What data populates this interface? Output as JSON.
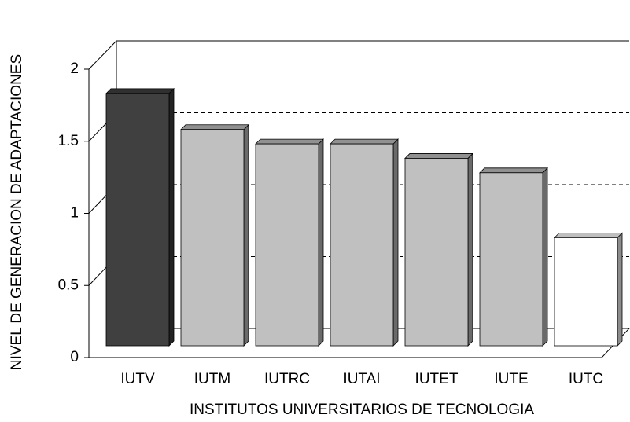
{
  "chart_data": {
    "type": "bar3d",
    "categories": [
      "IUTV",
      "IUTM",
      "IUTRC",
      "IUTAI",
      "IUTET",
      "IUTE",
      "IUTC"
    ],
    "values": [
      1.75,
      1.5,
      1.4,
      1.4,
      1.3,
      1.2,
      0.75
    ],
    "colors": [
      "#404040",
      "#c0c0c0",
      "#c0c0c0",
      "#c0c0c0",
      "#c0c0c0",
      "#c0c0c0",
      "#ffffff"
    ],
    "xlabel": "INSTITUTOS UNIVERSITARIOS DE TECNOLOGIA",
    "ylabel": "NIVEL DE GENERACION DE ADAPTACIONES",
    "ylim": [
      0,
      2
    ],
    "yticks": [
      0,
      0.5,
      1,
      1.5,
      2
    ],
    "grid": true
  }
}
